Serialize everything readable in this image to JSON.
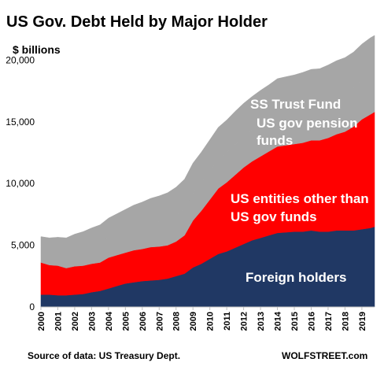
{
  "chart_data": {
    "type": "area",
    "stacked": true,
    "title": "US Gov. Debt Held by Major Holder",
    "unit_label": "$ billions",
    "source": "Source of data: US Treasury Dept.",
    "brand": "WOLFSTREET.com",
    "ylim": [
      0,
      22000
    ],
    "yticks": [
      "0",
      "5,000",
      "10,000",
      "15,000",
      "20,000"
    ],
    "ytick_values": [
      0,
      5000,
      10000,
      15000,
      20000
    ],
    "xlim": [
      2000.0,
      2019.75
    ],
    "x_tick_labels": [
      "2000",
      "2001",
      "2002",
      "2003",
      "2004",
      "2005",
      "2006",
      "2007",
      "2008",
      "2009",
      "2010",
      "2011",
      "2012",
      "2013",
      "2014",
      "2015",
      "2016",
      "2017",
      "2018",
      "2019"
    ],
    "x": [
      2000.0,
      2000.5,
      2001.0,
      2001.5,
      2002.0,
      2002.5,
      2003.0,
      2003.5,
      2004.0,
      2004.5,
      2005.0,
      2005.5,
      2006.0,
      2006.5,
      2007.0,
      2007.5,
      2008.0,
      2008.5,
      2009.0,
      2009.5,
      2010.0,
      2010.5,
      2011.0,
      2011.5,
      2012.0,
      2012.5,
      2013.0,
      2013.5,
      2014.0,
      2014.5,
      2015.0,
      2015.5,
      2016.0,
      2016.5,
      2017.0,
      2017.5,
      2018.0,
      2018.5,
      2019.0,
      2019.5,
      2019.75
    ],
    "series": [
      {
        "name": "Foreign holders",
        "color": "#203864",
        "values": [
          1000,
          1000,
          950,
          950,
          1000,
          1050,
          1200,
          1300,
          1500,
          1700,
          1900,
          2000,
          2100,
          2150,
          2200,
          2300,
          2500,
          2700,
          3200,
          3500,
          3900,
          4300,
          4500,
          4800,
          5100,
          5400,
          5600,
          5800,
          6000,
          6050,
          6100,
          6100,
          6200,
          6100,
          6100,
          6200,
          6200,
          6200,
          6300,
          6400,
          6500
        ]
      },
      {
        "name": "US entities other than US gov funds",
        "color": "#ff0000",
        "values": [
          2600,
          2400,
          2400,
          2200,
          2300,
          2300,
          2300,
          2300,
          2500,
          2500,
          2500,
          2600,
          2600,
          2700,
          2700,
          2700,
          2800,
          3100,
          3800,
          4300,
          4800,
          5300,
          5600,
          5900,
          6200,
          6400,
          6600,
          6800,
          7000,
          7050,
          7100,
          7200,
          7300,
          7400,
          7600,
          7800,
          8000,
          8400,
          8900,
          9200,
          9300
        ]
      },
      {
        "name": "US gov pension funds",
        "color": "#a6a6a6",
        "values": [
          1300,
          1350,
          1400,
          1450,
          1500,
          1550,
          1600,
          1650,
          1700,
          1750,
          1800,
          1850,
          1900,
          1950,
          2000,
          2050,
          2100,
          2150,
          2200,
          2250,
          2300,
          2350,
          2400,
          2450,
          2500,
          2550,
          2600,
          2650,
          2700,
          2750,
          2800,
          2850,
          2900,
          2950,
          3000,
          3050,
          3100,
          3150,
          3200,
          3250,
          3300
        ]
      },
      {
        "name": "SS Trust Fund",
        "color": "#a6a6a6",
        "values": [
          800,
          850,
          900,
          1000,
          1100,
          1200,
          1300,
          1400,
          1500,
          1600,
          1700,
          1800,
          1900,
          2000,
          2100,
          2200,
          2300,
          2400,
          2450,
          2500,
          2550,
          2600,
          2650,
          2700,
          2700,
          2700,
          2750,
          2750,
          2800,
          2800,
          2800,
          2850,
          2850,
          2850,
          2900,
          2900,
          2900,
          2900,
          2900,
          2950,
          2900
        ]
      }
    ],
    "labels": {
      "ss": "SS Trust Fund",
      "pension_1": "US gov pension",
      "pension_2": "funds",
      "entities_1": "US entities other than",
      "entities_2": "US gov funds",
      "foreign": "Foreign holders"
    }
  }
}
